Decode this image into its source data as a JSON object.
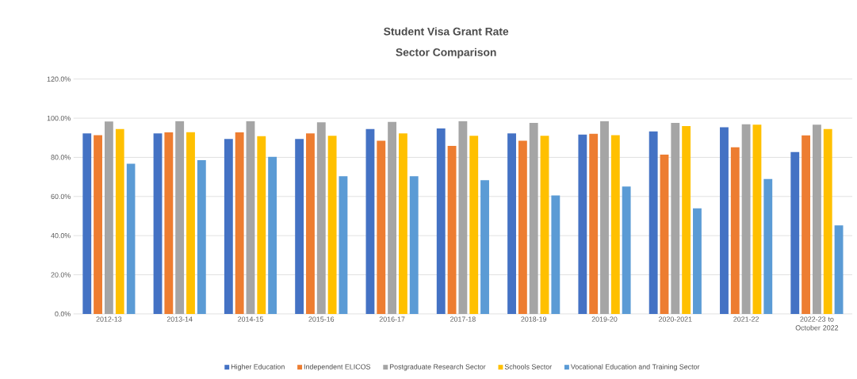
{
  "chart_data": {
    "type": "bar",
    "title": "Student Visa Grant Rate",
    "subtitle": "Sector Comparison",
    "categories": [
      "2012-13",
      "2013-14",
      "2014-15",
      "2015-16",
      "2016-17",
      "2017-18",
      "2018-19",
      "2019-20",
      "2020-2021",
      "2021-22",
      "2022-23 to October 2022"
    ],
    "series": [
      {
        "name": "Higher Education",
        "color": "#4472c4",
        "values": [
          92.2,
          92.2,
          89.4,
          89.4,
          94.5,
          94.8,
          92.2,
          91.6,
          93.2,
          95.4,
          82.7
        ]
      },
      {
        "name": "Independent ELICOS",
        "color": "#ed7d31",
        "values": [
          91.3,
          92.8,
          92.8,
          92.2,
          88.5,
          85.9,
          88.5,
          92.0,
          81.4,
          85.1,
          91.2
        ]
      },
      {
        "name": "Postgraduate Research Sector",
        "color": "#a5a5a5",
        "values": [
          98.3,
          98.5,
          98.5,
          97.9,
          98.1,
          98.5,
          97.6,
          98.5,
          97.6,
          96.9,
          96.7
        ]
      },
      {
        "name": "Schools Sector",
        "color": "#ffc000",
        "values": [
          94.5,
          92.8,
          90.8,
          91.0,
          92.2,
          91.0,
          91.0,
          91.3,
          96.0,
          96.7,
          94.5
        ]
      },
      {
        "name": "Vocational Education and Training Sector",
        "color": "#5b9bd5",
        "values": [
          76.7,
          78.6,
          80.3,
          70.4,
          70.4,
          68.3,
          60.5,
          65.1,
          53.9,
          68.9,
          45.2
        ]
      }
    ],
    "ylim": [
      0,
      120
    ],
    "yticks": [
      {
        "value": 0,
        "label": "0.0%"
      },
      {
        "value": 20,
        "label": "20.0%"
      },
      {
        "value": 40,
        "label": "40.0%"
      },
      {
        "value": 60,
        "label": "60.0%"
      },
      {
        "value": 80,
        "label": "80.0%"
      },
      {
        "value": 100,
        "label": "100.0%"
      },
      {
        "value": 120,
        "label": "120.0%"
      }
    ],
    "grid": "y",
    "legend": "bottom"
  }
}
